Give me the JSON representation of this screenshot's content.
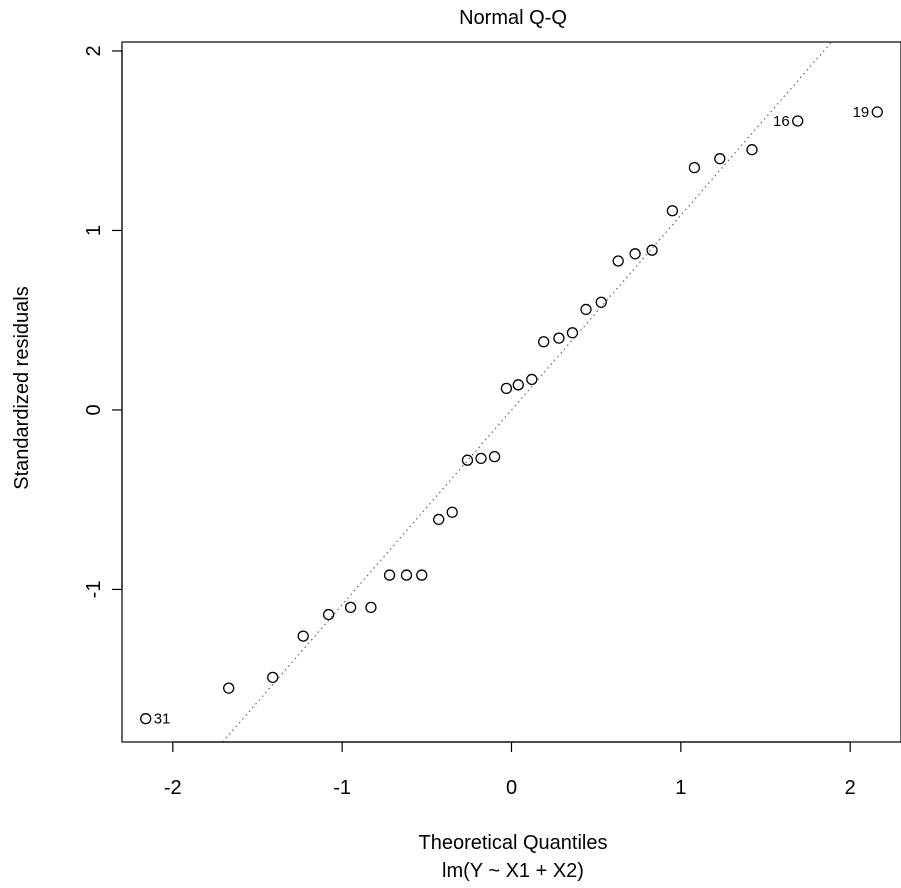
{
  "chart_data": {
    "type": "scatter",
    "title": "Normal Q-Q",
    "xlabel": "Theoretical Quantiles",
    "subtitle": "lm(Y ~ X1 + X2)",
    "ylabel": "Standardized residuals",
    "xlim": [
      -2.3,
      2.3
    ],
    "ylim": [
      -1.85,
      2.05
    ],
    "xticks": [
      -2,
      -1,
      0,
      1,
      2
    ],
    "yticks": [
      -1,
      0,
      1,
      2
    ],
    "xtick_labels": [
      "-2",
      "-1",
      "0",
      "1",
      "2"
    ],
    "ytick_labels": [
      "-1",
      "0",
      "1",
      "2"
    ],
    "grid": false,
    "points": [
      {
        "x": -2.16,
        "y": -1.72
      },
      {
        "x": -1.67,
        "y": -1.55
      },
      {
        "x": -1.41,
        "y": -1.49
      },
      {
        "x": -1.23,
        "y": -1.26
      },
      {
        "x": -1.08,
        "y": -1.14
      },
      {
        "x": -0.95,
        "y": -1.1
      },
      {
        "x": -0.83,
        "y": -1.1
      },
      {
        "x": -0.72,
        "y": -0.92
      },
      {
        "x": -0.62,
        "y": -0.92
      },
      {
        "x": -0.53,
        "y": -0.92
      },
      {
        "x": -0.43,
        "y": -0.61
      },
      {
        "x": -0.35,
        "y": -0.57
      },
      {
        "x": -0.26,
        "y": -0.28
      },
      {
        "x": -0.18,
        "y": -0.27
      },
      {
        "x": -0.1,
        "y": -0.26
      },
      {
        "x": -0.03,
        "y": 0.12
      },
      {
        "x": 0.04,
        "y": 0.14
      },
      {
        "x": 0.12,
        "y": 0.17
      },
      {
        "x": 0.19,
        "y": 0.38
      },
      {
        "x": 0.28,
        "y": 0.4
      },
      {
        "x": 0.36,
        "y": 0.43
      },
      {
        "x": 0.44,
        "y": 0.56
      },
      {
        "x": 0.53,
        "y": 0.6
      },
      {
        "x": 0.63,
        "y": 0.83
      },
      {
        "x": 0.73,
        "y": 0.87
      },
      {
        "x": 0.83,
        "y": 0.89
      },
      {
        "x": 0.95,
        "y": 1.11
      },
      {
        "x": 1.08,
        "y": 1.35
      },
      {
        "x": 1.23,
        "y": 1.4
      },
      {
        "x": 1.42,
        "y": 1.45
      },
      {
        "x": 1.69,
        "y": 1.61
      },
      {
        "x": 2.16,
        "y": 1.66
      }
    ],
    "labels": [
      {
        "text": "31",
        "x": -2.16,
        "y": -1.72,
        "side": "right"
      },
      {
        "text": "16",
        "x": 1.69,
        "y": 1.61,
        "side": "left"
      },
      {
        "text": "19",
        "x": 2.16,
        "y": 1.66,
        "side": "left"
      }
    ],
    "reference_line": {
      "intercept": 0.0,
      "slope": 1.085,
      "style": "dotted",
      "color": "#666666"
    }
  }
}
